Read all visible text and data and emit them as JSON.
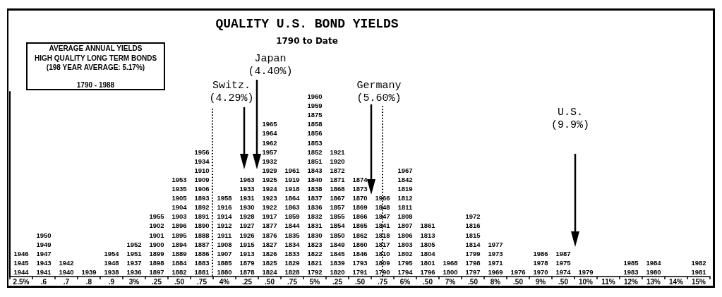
{
  "chart_data": {
    "type": "heatmap",
    "title": "QUALITY U.S. BOND YIELDS",
    "subtitle": "1790 to Date",
    "annotations": [
      "AVERAGE ANNUAL YIELDS\nHIGH QUALITY LONG TERM BONDS\n(198 YEAR AVERAGE: 5.17%)",
      "1790 - 1988",
      "Switz.\n(4.29%)",
      "Japan\n(4.40%)",
      "Germany\n(5.60%)",
      "U.S.\n(9.9%)"
    ],
    "categories": [
      "2.5%",
      ".6",
      ".7",
      ".8",
      ".9",
      "3%",
      ".25",
      ".50",
      ".75",
      "4%",
      ".25",
      ".50",
      ".75",
      "5%",
      ".25",
      ".50",
      ".75",
      "6%",
      ".50",
      "7%",
      ".50",
      "8%",
      ".50",
      "9%",
      ".50",
      "10%",
      "11%",
      "12%",
      "13%",
      "14%",
      "15%"
    ],
    "y_categories": [
      null,
      null,
      null,
      null,
      null,
      null,
      null,
      null,
      null,
      null,
      null,
      null,
      null,
      null,
      null,
      null,
      null,
      null,
      null,
      null
    ],
    "data_labels": true,
    "cells": [
      [
        null,
        null,
        null,
        null,
        null,
        null,
        null,
        null,
        null,
        null,
        null,
        null,
        null,
        1960,
        null,
        null,
        null,
        null,
        null,
        null,
        null,
        null,
        null,
        null,
        null,
        null,
        null,
        null,
        null,
        null,
        null
      ],
      [
        null,
        null,
        null,
        null,
        null,
        null,
        null,
        null,
        null,
        null,
        null,
        null,
        null,
        1959,
        null,
        null,
        null,
        null,
        null,
        null,
        null,
        null,
        null,
        null,
        null,
        null,
        null,
        null,
        null,
        null,
        null
      ],
      [
        null,
        null,
        null,
        null,
        null,
        null,
        null,
        null,
        null,
        null,
        null,
        null,
        null,
        1875,
        null,
        null,
        null,
        null,
        null,
        null,
        null,
        null,
        null,
        null,
        null,
        null,
        null,
        null,
        null,
        null,
        null
      ],
      [
        null,
        null,
        null,
        null,
        null,
        null,
        null,
        null,
        null,
        null,
        null,
        1965,
        null,
        1858,
        null,
        null,
        null,
        null,
        null,
        null,
        null,
        null,
        null,
        null,
        null,
        null,
        null,
        null,
        null,
        null,
        null
      ],
      [
        null,
        null,
        null,
        null,
        null,
        null,
        null,
        null,
        null,
        null,
        null,
        1964,
        null,
        1856,
        null,
        null,
        null,
        null,
        null,
        null,
        null,
        null,
        null,
        null,
        null,
        null,
        null,
        null,
        null,
        null,
        null
      ],
      [
        null,
        null,
        null,
        null,
        null,
        null,
        null,
        null,
        null,
        null,
        null,
        1962,
        null,
        1853,
        null,
        null,
        null,
        null,
        null,
        null,
        null,
        null,
        null,
        null,
        null,
        null,
        null,
        null,
        null,
        null,
        null
      ],
      [
        null,
        null,
        null,
        null,
        null,
        null,
        null,
        null,
        1956,
        null,
        null,
        1957,
        null,
        1852,
        1921,
        null,
        null,
        null,
        null,
        null,
        null,
        null,
        null,
        null,
        null,
        null,
        null,
        null,
        null,
        null,
        null
      ],
      [
        null,
        null,
        null,
        null,
        null,
        null,
        null,
        null,
        1934,
        null,
        null,
        1932,
        null,
        1851,
        1920,
        null,
        null,
        null,
        null,
        null,
        null,
        null,
        null,
        null,
        null,
        null,
        null,
        null,
        null,
        null,
        null
      ],
      [
        null,
        null,
        null,
        null,
        null,
        null,
        null,
        null,
        1910,
        null,
        null,
        1929,
        1961,
        1843,
        1872,
        null,
        null,
        1967,
        null,
        null,
        null,
        null,
        null,
        null,
        null,
        null,
        null,
        null,
        null,
        null,
        null
      ],
      [
        null,
        null,
        null,
        null,
        null,
        null,
        null,
        1953,
        1909,
        null,
        1963,
        1925,
        1919,
        1840,
        1871,
        1874,
        null,
        1842,
        null,
        null,
        null,
        null,
        null,
        null,
        null,
        null,
        null,
        null,
        null,
        null,
        null
      ],
      [
        null,
        null,
        null,
        null,
        null,
        null,
        null,
        1935,
        1906,
        null,
        1933,
        1924,
        1918,
        1838,
        1868,
        1873,
        null,
        1819,
        null,
        null,
        null,
        null,
        null,
        null,
        null,
        null,
        null,
        null,
        null,
        null,
        null
      ],
      [
        null,
        null,
        null,
        null,
        null,
        null,
        null,
        1905,
        1893,
        1958,
        1931,
        1923,
        1864,
        1837,
        1867,
        1870,
        1966,
        1812,
        null,
        null,
        null,
        null,
        null,
        null,
        null,
        null,
        null,
        null,
        null,
        null,
        null
      ],
      [
        null,
        null,
        null,
        null,
        null,
        null,
        null,
        1904,
        1892,
        1916,
        1930,
        1922,
        1863,
        1836,
        1857,
        1869,
        1848,
        1811,
        null,
        null,
        null,
        null,
        null,
        null,
        null,
        null,
        null,
        null,
        null,
        null,
        null
      ],
      [
        null,
        null,
        null,
        null,
        null,
        null,
        1955,
        1903,
        1891,
        1914,
        1928,
        1917,
        1859,
        1832,
        1855,
        1866,
        1847,
        1808,
        null,
        null,
        1972,
        null,
        null,
        null,
        null,
        null,
        null,
        null,
        null,
        null,
        null
      ],
      [
        null,
        null,
        null,
        null,
        null,
        null,
        1902,
        1896,
        1890,
        1912,
        1927,
        1877,
        1844,
        1831,
        1854,
        1865,
        1841,
        1807,
        1861,
        null,
        1816,
        null,
        null,
        null,
        null,
        null,
        null,
        null,
        null,
        null,
        null
      ],
      [
        null,
        1950,
        null,
        null,
        null,
        null,
        1901,
        1895,
        1888,
        1911,
        1926,
        1876,
        1835,
        1830,
        1850,
        1862,
        1818,
        1806,
        1813,
        null,
        1815,
        null,
        null,
        null,
        null,
        null,
        null,
        null,
        null,
        null,
        null
      ],
      [
        null,
        1949,
        null,
        null,
        null,
        1952,
        1900,
        1894,
        1887,
        1908,
        1915,
        1827,
        1834,
        1823,
        1849,
        1860,
        1817,
        1803,
        1805,
        null,
        1814,
        1977,
        null,
        null,
        null,
        null,
        null,
        null,
        null,
        null,
        null
      ],
      [
        1946,
        1947,
        null,
        null,
        1954,
        1951,
        1899,
        1889,
        1886,
        1907,
        1913,
        1826,
        1833,
        1822,
        1845,
        1846,
        1810,
        1802,
        1804,
        null,
        1799,
        1973,
        null,
        1986,
        1987,
        null,
        null,
        null,
        null,
        null,
        null
      ],
      [
        1945,
        1943,
        1942,
        null,
        1948,
        1937,
        1898,
        1884,
        1883,
        1885,
        1879,
        1825,
        1829,
        1821,
        1839,
        1793,
        1809,
        1795,
        1801,
        1968,
        1798,
        1971,
        null,
        1978,
        1975,
        null,
        null,
        1985,
        1984,
        null,
        1982
      ],
      [
        1944,
        1941,
        1940,
        1939,
        1938,
        1936,
        1897,
        1882,
        1881,
        1880,
        1878,
        1824,
        1828,
        1792,
        1820,
        1791,
        1790,
        1794,
        1796,
        1800,
        1797,
        1969,
        1976,
        1970,
        1974,
        1979,
        null,
        1983,
        1980,
        null,
        1981
      ]
    ]
  }
}
